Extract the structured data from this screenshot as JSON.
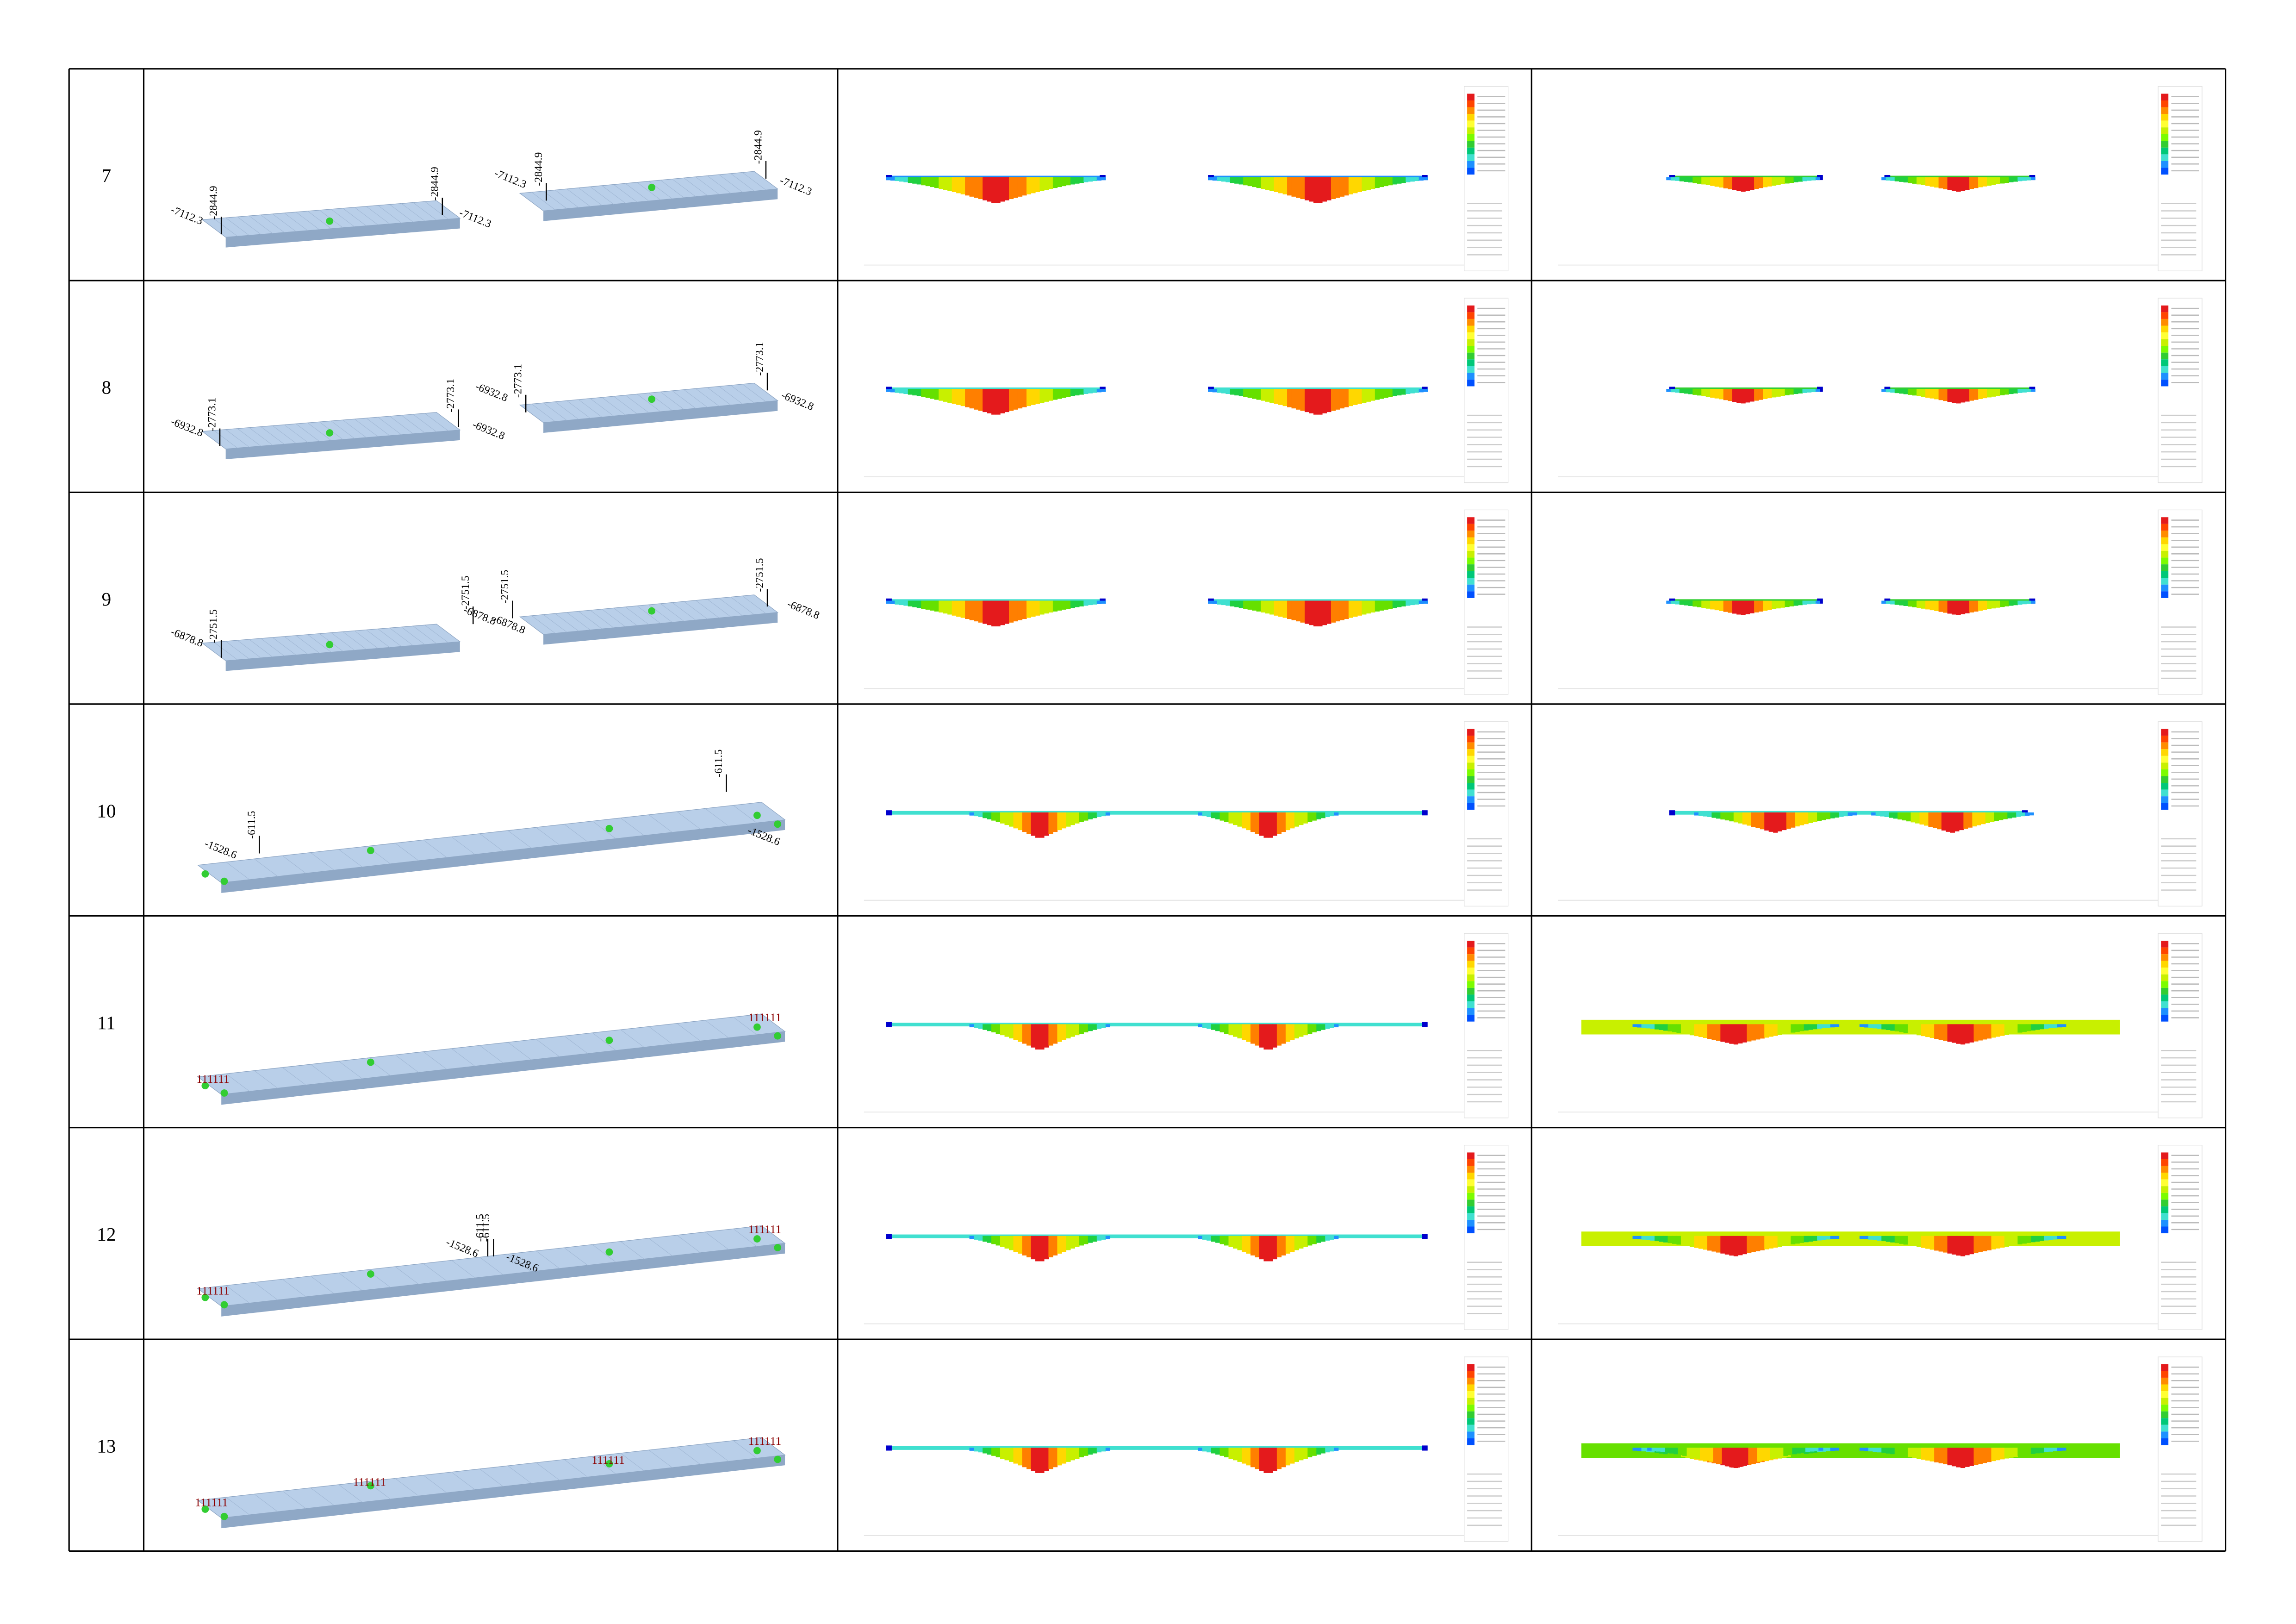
{
  "table": {
    "rows": [
      {
        "label": "7",
        "annotations": [
          "-2844.9",
          "-2844.9",
          "-2844.9",
          "-2844.9",
          "-7112.3",
          "-7112.3",
          "-7112.3",
          "-7112.3"
        ]
      },
      {
        "label": "8",
        "annotations": [
          "-2773.1",
          "-2773.1",
          "-2773.1",
          "-2773.1",
          "-6932.8",
          "-6932.8",
          "-6932.8",
          "-6932.8"
        ]
      },
      {
        "label": "9",
        "annotations": [
          "-2751.5",
          "-2751.5",
          "-2751.5",
          "-2751.5",
          "-6878.8",
          "-6878.8",
          "-6878.8",
          "-6878.8"
        ]
      },
      {
        "label": "10",
        "annotations": [
          "-611.5",
          "-611.5",
          "-1528.6",
          "-1528.6"
        ]
      },
      {
        "label": "11",
        "annotations": [
          "111111",
          "111111"
        ]
      },
      {
        "label": "12",
        "annotations": [
          "-611.5",
          "-611.5",
          "-1528.6",
          "-1528.6",
          "111111",
          "111111"
        ]
      },
      {
        "label": "13",
        "annotations": [
          "111111",
          "111111",
          "111111",
          "111111"
        ]
      }
    ]
  }
}
